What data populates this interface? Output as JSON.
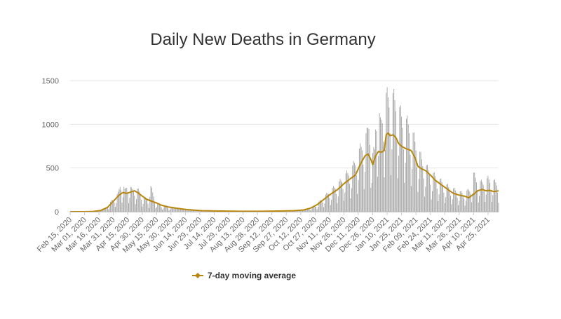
{
  "chart_data": {
    "type": "bar",
    "title": "Daily New Deaths in Germany",
    "xlabel": "",
    "ylabel": "",
    "ylim": [
      0,
      1500
    ],
    "y_ticks": [
      0,
      500,
      1000,
      1500
    ],
    "grid": true,
    "legend_position": "bottom-center",
    "x_start": "2020-02-15",
    "x_end": "2021-05-06",
    "x_tick_labels": [
      "Feb 15, 2020",
      "Mar 01, 2020",
      "Mar 16, 2020",
      "Mar 31, 2020",
      "Apr 15, 2020",
      "Apr 30, 2020",
      "May 15, 2020",
      "May 30, 2020",
      "Jun 14, 2020",
      "Jun 29, 2020",
      "Jul 14, 2020",
      "Jul 29, 2020",
      "Aug 13, 2020",
      "Aug 28, 2020",
      "Sep 12, 2020",
      "Sep 27, 2020",
      "Oct 12, 2020",
      "Oct 27, 2020",
      "Nov 11, 2020",
      "Nov 26, 2020",
      "Dec 11, 2020",
      "Dec 26, 2020",
      "Jan 10, 2021",
      "Jan 25, 2021",
      "Feb 09, 2021",
      "Feb 24, 2021",
      "Mar 11, 2021",
      "Mar 26, 2021",
      "Apr 10, 2021",
      "Apr 25, 2021"
    ],
    "series": [
      {
        "name": "Daily New Deaths",
        "kind": "bar",
        "color": "#9e9e9e",
        "anchors": [
          [
            "2020-02-15",
            0
          ],
          [
            "2020-03-08",
            2
          ],
          [
            "2020-03-15",
            8
          ],
          [
            "2020-03-22",
            30
          ],
          [
            "2020-03-29",
            110
          ],
          [
            "2020-04-05",
            190
          ],
          [
            "2020-04-08",
            330
          ],
          [
            "2020-04-12",
            220
          ],
          [
            "2020-04-15",
            300
          ],
          [
            "2020-04-19",
            230
          ],
          [
            "2020-04-23",
            250
          ],
          [
            "2020-04-28",
            200
          ],
          [
            "2020-05-01",
            150
          ],
          [
            "2020-05-07",
            120
          ],
          [
            "2020-05-08",
            285
          ],
          [
            "2020-05-15",
            90
          ],
          [
            "2020-05-22",
            60
          ],
          [
            "2020-06-01",
            40
          ],
          [
            "2020-06-15",
            20
          ],
          [
            "2020-07-01",
            10
          ],
          [
            "2020-08-01",
            6
          ],
          [
            "2020-09-01",
            5
          ],
          [
            "2020-10-01",
            10
          ],
          [
            "2020-10-15",
            25
          ],
          [
            "2020-10-25",
            50
          ],
          [
            "2020-11-01",
            110
          ],
          [
            "2020-11-10",
            200
          ],
          [
            "2020-11-20",
            290
          ],
          [
            "2020-11-28",
            380
          ],
          [
            "2020-12-05",
            460
          ],
          [
            "2020-12-10",
            580
          ],
          [
            "2020-12-15",
            700
          ],
          [
            "2020-12-20",
            800
          ],
          [
            "2020-12-23",
            1020
          ],
          [
            "2020-12-25",
            550
          ],
          [
            "2020-12-28",
            650
          ],
          [
            "2020-12-30",
            1230
          ],
          [
            "2021-01-03",
            900
          ],
          [
            "2021-01-08",
            1180
          ],
          [
            "2021-01-14",
            1200
          ],
          [
            "2021-01-19",
            1150
          ],
          [
            "2021-01-26",
            960
          ],
          [
            "2021-02-02",
            900
          ],
          [
            "2021-02-09",
            700
          ],
          [
            "2021-02-16",
            520
          ],
          [
            "2021-02-23",
            420
          ],
          [
            "2021-03-02",
            360
          ],
          [
            "2021-03-09",
            300
          ],
          [
            "2021-03-16",
            250
          ],
          [
            "2021-03-23",
            220
          ],
          [
            "2021-03-30",
            190
          ],
          [
            "2021-04-06",
            230
          ],
          [
            "2021-04-10",
            390
          ],
          [
            "2021-04-15",
            300
          ],
          [
            "2021-04-20",
            310
          ],
          [
            "2021-04-25",
            340
          ],
          [
            "2021-05-02",
            310
          ],
          [
            "2021-05-06",
            290
          ]
        ]
      },
      {
        "name": "7-day moving average",
        "kind": "line",
        "color": "#b8860b",
        "values": [
          [
            "2020-02-15",
            0
          ],
          [
            "2020-03-01",
            0
          ],
          [
            "2020-03-10",
            3
          ],
          [
            "2020-03-18",
            15
          ],
          [
            "2020-03-25",
            50
          ],
          [
            "2020-03-31",
            120
          ],
          [
            "2020-04-06",
            190
          ],
          [
            "2020-04-10",
            220
          ],
          [
            "2020-04-14",
            210
          ],
          [
            "2020-04-18",
            225
          ],
          [
            "2020-04-22",
            240
          ],
          [
            "2020-04-26",
            215
          ],
          [
            "2020-04-30",
            180
          ],
          [
            "2020-05-05",
            140
          ],
          [
            "2020-05-10",
            120
          ],
          [
            "2020-05-15",
            100
          ],
          [
            "2020-05-20",
            75
          ],
          [
            "2020-05-27",
            55
          ],
          [
            "2020-06-05",
            40
          ],
          [
            "2020-06-15",
            25
          ],
          [
            "2020-07-01",
            12
          ],
          [
            "2020-07-20",
            8
          ],
          [
            "2020-08-10",
            5
          ],
          [
            "2020-09-01",
            5
          ],
          [
            "2020-09-20",
            8
          ],
          [
            "2020-10-05",
            12
          ],
          [
            "2020-10-15",
            20
          ],
          [
            "2020-10-22",
            40
          ],
          [
            "2020-10-29",
            80
          ],
          [
            "2020-11-05",
            140
          ],
          [
            "2020-11-12",
            200
          ],
          [
            "2020-11-19",
            250
          ],
          [
            "2020-11-26",
            320
          ],
          [
            "2020-12-03",
            380
          ],
          [
            "2020-12-08",
            420
          ],
          [
            "2020-12-13",
            540
          ],
          [
            "2020-12-18",
            640
          ],
          [
            "2020-12-21",
            660
          ],
          [
            "2020-12-24",
            600
          ],
          [
            "2020-12-26",
            540
          ],
          [
            "2020-12-29",
            640
          ],
          [
            "2021-01-01",
            690
          ],
          [
            "2021-01-04",
            680
          ],
          [
            "2021-01-07",
            700
          ],
          [
            "2021-01-09",
            880
          ],
          [
            "2021-01-11",
            900
          ],
          [
            "2021-01-13",
            870
          ],
          [
            "2021-01-16",
            880
          ],
          [
            "2021-01-19",
            850
          ],
          [
            "2021-01-22",
            780
          ],
          [
            "2021-01-26",
            740
          ],
          [
            "2021-01-30",
            720
          ],
          [
            "2021-02-04",
            700
          ],
          [
            "2021-02-08",
            620
          ],
          [
            "2021-02-11",
            520
          ],
          [
            "2021-02-15",
            490
          ],
          [
            "2021-02-19",
            470
          ],
          [
            "2021-02-24",
            420
          ],
          [
            "2021-03-01",
            360
          ],
          [
            "2021-03-06",
            320
          ],
          [
            "2021-03-11",
            280
          ],
          [
            "2021-03-16",
            240
          ],
          [
            "2021-03-20",
            210
          ],
          [
            "2021-03-26",
            190
          ],
          [
            "2021-03-31",
            180
          ],
          [
            "2021-04-05",
            160
          ],
          [
            "2021-04-10",
            200
          ],
          [
            "2021-04-14",
            240
          ],
          [
            "2021-04-19",
            255
          ],
          [
            "2021-04-23",
            240
          ],
          [
            "2021-04-27",
            245
          ],
          [
            "2021-05-01",
            230
          ],
          [
            "2021-05-06",
            240
          ]
        ]
      }
    ],
    "legend": [
      {
        "label": "7-day moving average",
        "color": "#b8860b"
      }
    ]
  }
}
